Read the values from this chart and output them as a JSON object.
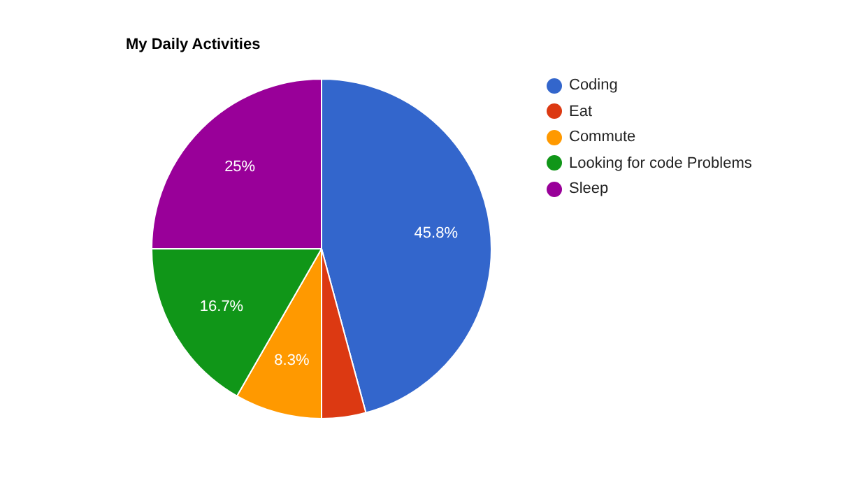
{
  "chart_data": {
    "type": "pie",
    "title": "My Daily Activities",
    "categories": [
      "Coding",
      "Eat",
      "Commute",
      "Looking for code Problems",
      "Sleep"
    ],
    "values": [
      45.8,
      4.2,
      8.3,
      16.7,
      25
    ],
    "colors": [
      "#3366cc",
      "#dc3912",
      "#ff9900",
      "#109618",
      "#990099"
    ],
    "value_labels": [
      "45.8%",
      null,
      "8.3%",
      "16.7%",
      "25%"
    ],
    "legend": "right"
  }
}
